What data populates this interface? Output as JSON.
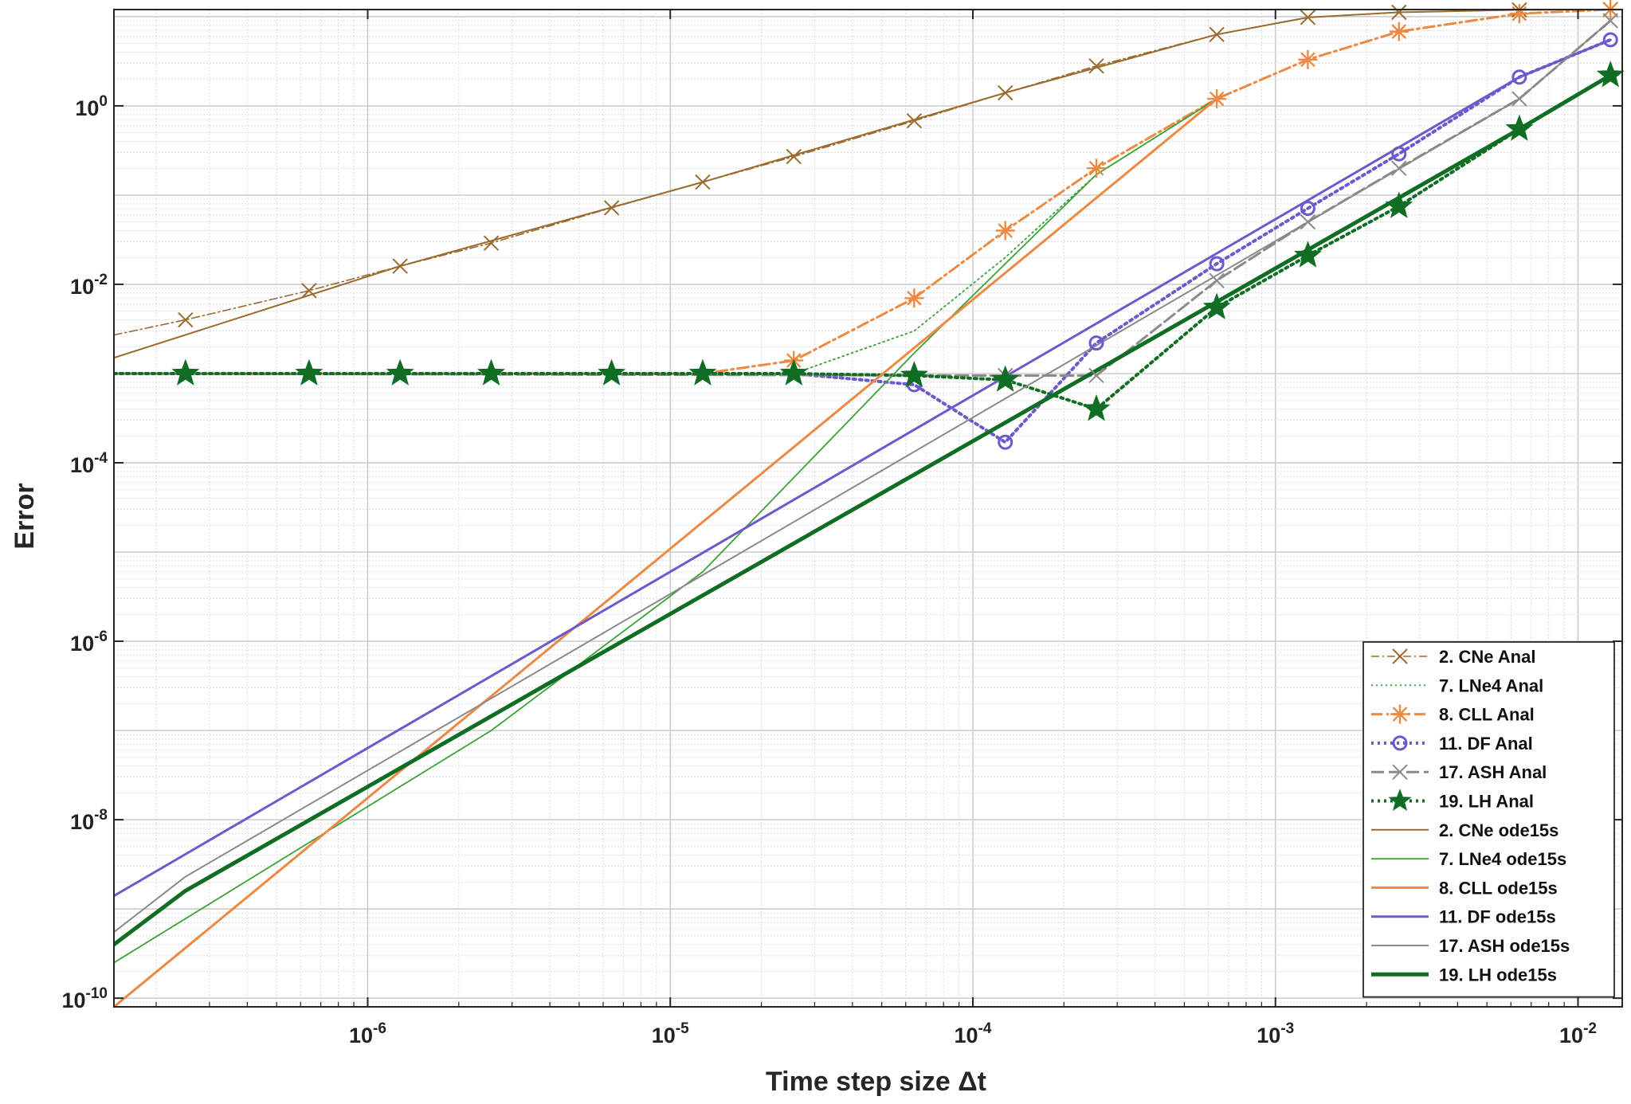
{
  "chart_data": {
    "type": "line",
    "title": "",
    "xlabel": "Time step size Δt",
    "ylabel": "Error",
    "xscale": "log",
    "yscale": "log",
    "xlim": [
      1.45e-07,
      0.014
    ],
    "ylim": [
      8e-11,
      12
    ],
    "grid": "major and minor",
    "legend_position": "bottom-right",
    "x_ticks": [
      {
        "value": 1e-06,
        "base": "10",
        "exp": "-6"
      },
      {
        "value": 1e-05,
        "base": "10",
        "exp": "-5"
      },
      {
        "value": 0.0001,
        "base": "10",
        "exp": "-4"
      },
      {
        "value": 0.001,
        "base": "10",
        "exp": "-3"
      },
      {
        "value": 0.01,
        "base": "10",
        "exp": "-2"
      }
    ],
    "y_ticks": [
      {
        "value": 1e-10,
        "base": "10",
        "exp": "-10"
      },
      {
        "value": 1e-08,
        "base": "10",
        "exp": "-8"
      },
      {
        "value": 1e-06,
        "base": "10",
        "exp": "-6"
      },
      {
        "value": 0.0001,
        "base": "10",
        "exp": "-4"
      },
      {
        "value": 0.01,
        "base": "10",
        "exp": "-2"
      },
      {
        "value": 1,
        "base": "10",
        "exp": "0"
      }
    ],
    "series": [
      {
        "name": "2. CNe  Anal",
        "color": "#9a6a2e",
        "width": 1.6,
        "dash": "10,4,2,4",
        "marker": "x",
        "marker_size": 9,
        "x": [
          1.45e-07,
          2.5e-07,
          6.4e-07,
          1.28e-06,
          2.56e-06,
          6.4e-06,
          1.28e-05,
          2.56e-05,
          6.4e-05,
          0.000128,
          0.000256,
          0.00064,
          0.00128,
          0.00256,
          0.0064,
          0.0128
        ],
        "y": [
          0.0027,
          0.004,
          0.0085,
          0.016,
          0.029,
          0.072,
          0.14,
          0.27,
          0.68,
          1.4,
          2.8,
          6.3,
          9.8,
          11.2,
          11.9,
          12
        ],
        "mx": [
          2.5e-07,
          6.4e-07,
          1.28e-06,
          2.56e-06,
          6.4e-06,
          1.28e-05,
          2.56e-05,
          6.4e-05,
          0.000128,
          0.000256,
          0.00064,
          0.00128,
          0.00256,
          0.0064,
          0.0128
        ]
      },
      {
        "name": "7. LNe4  Anal",
        "color": "#3aa33a",
        "width": 1.8,
        "dash": "2,4",
        "marker": "none",
        "x": [
          1.45e-07,
          2.56e-05,
          6.4e-05,
          0.000128,
          0.000256,
          0.00064
        ],
        "y": [
          0.001,
          0.001,
          0.003,
          0.02,
          0.17,
          1.2
        ]
      },
      {
        "name": "8. CLL  Anal",
        "color": "#ec8a43",
        "width": 3,
        "dash": "14,5,3,5",
        "marker": "asterisk",
        "marker_size": 12,
        "x": [
          1.45e-07,
          1.28e-05,
          2.56e-05,
          6.4e-05,
          0.000128,
          0.000256,
          0.00064,
          0.00128,
          0.00256,
          0.0064,
          0.0128
        ],
        "y": [
          0.001,
          0.001,
          0.0014,
          0.007,
          0.04,
          0.2,
          1.2,
          3.3,
          6.8,
          10.8,
          12
        ],
        "mx": [
          2.56e-05,
          6.4e-05,
          0.000128,
          0.000256,
          0.00064,
          0.00128,
          0.00256,
          0.0064,
          0.0128
        ]
      },
      {
        "name": "11. DF  Anal",
        "color": "#6a5acd",
        "width": 4,
        "dash": "3,5",
        "marker": "circle",
        "marker_size": 8,
        "x": [
          1.45e-07,
          2.56e-05,
          6.4e-05,
          0.000128,
          0.000256,
          0.00064,
          0.00128,
          0.00256,
          0.0064,
          0.0128
        ],
        "y": [
          0.001,
          0.001,
          0.00075,
          0.00017,
          0.0022,
          0.017,
          0.071,
          0.29,
          2.1,
          5.5
        ],
        "mx": [
          6.4e-05,
          0.000128,
          0.000256,
          0.00064,
          0.00128,
          0.00256,
          0.0064,
          0.0128
        ]
      },
      {
        "name": "17. ASH  Anal",
        "color": "#8a8a8a",
        "width": 3,
        "dash": "16,6",
        "marker": "x",
        "marker_size": 9,
        "x": [
          1.45e-07,
          0.000128,
          0.000256,
          0.00064,
          0.00128,
          0.00256,
          0.0064,
          0.0128
        ],
        "y": [
          0.001,
          0.00095,
          0.00095,
          0.011,
          0.05,
          0.2,
          1.2,
          9
        ],
        "mx": [
          0.000128,
          0.000256,
          0.00064,
          0.00128,
          0.00256,
          0.0064,
          0.0128
        ]
      },
      {
        "name": "19. LH  Anal",
        "color": "#0f6e23",
        "width": 4,
        "dash": "3,5",
        "marker": "star",
        "marker_size": 17,
        "x": [
          1.45e-07,
          2.5e-07,
          6.4e-07,
          1.28e-06,
          2.56e-06,
          6.4e-06,
          1.28e-05,
          2.56e-05,
          6.4e-05,
          0.000128,
          0.000256,
          0.00064,
          0.00128,
          0.00256,
          0.0064,
          0.0128
        ],
        "y": [
          0.001,
          0.001,
          0.001,
          0.001,
          0.001,
          0.001,
          0.001,
          0.001,
          0.00095,
          0.00085,
          0.0004,
          0.0055,
          0.021,
          0.075,
          0.55,
          2.2
        ],
        "mx": [
          2.5e-07,
          6.4e-07,
          1.28e-06,
          2.56e-06,
          6.4e-06,
          1.28e-05,
          2.56e-05,
          6.4e-05,
          0.000128,
          0.000256,
          0.00064,
          0.00128,
          0.00256,
          0.0064,
          0.0128
        ]
      },
      {
        "name": "2. CNe  ode15s",
        "color": "#9a6a2e",
        "width": 2,
        "dash": "",
        "marker": "none",
        "x": [
          1.45e-07,
          1.28e-06,
          1.28e-05,
          0.000128,
          0.00064,
          0.00128,
          0.00256,
          0.0064,
          0.0128
        ],
        "y": [
          0.0015,
          0.016,
          0.14,
          1.4,
          6.3,
          9.8,
          11.2,
          11.9,
          12
        ]
      },
      {
        "name": "7. LNe4  ode15s",
        "color": "#3aa33a",
        "width": 1.8,
        "dash": "",
        "marker": "none",
        "x": [
          1.45e-07,
          2.56e-06,
          1.28e-05,
          6.4e-05,
          0.000256,
          0.00064
        ],
        "y": [
          2.5e-10,
          1e-07,
          6e-06,
          0.0017,
          0.17,
          1.2
        ]
      },
      {
        "name": "8. CLL  ode15s",
        "color": "#ec8a43",
        "width": 3,
        "dash": "",
        "marker": "none",
        "x": [
          1.45e-07,
          0.00064
        ],
        "y": [
          8e-11,
          1.2
        ]
      },
      {
        "name": "11. DF  ode15s",
        "color": "#6a5acd",
        "width": 3,
        "dash": "",
        "marker": "none",
        "x": [
          1.45e-07,
          0.0064,
          0.0128
        ],
        "y": [
          1.4e-09,
          2.1,
          5.5
        ]
      },
      {
        "name": "17. ASH  ode15s",
        "color": "#8a8a8a",
        "width": 2,
        "dash": "",
        "marker": "none",
        "x": [
          1.45e-07,
          2.5e-07,
          0.0064,
          0.0128
        ],
        "y": [
          5.5e-10,
          2.3e-09,
          1.2,
          9
        ]
      },
      {
        "name": "19. LH  ode15s",
        "color": "#0f6e23",
        "width": 5,
        "dash": "",
        "marker": "none",
        "x": [
          1.45e-07,
          2.5e-07,
          0.0064,
          0.0128
        ],
        "y": [
          4e-10,
          1.6e-09,
          0.55,
          2.2
        ]
      }
    ]
  }
}
